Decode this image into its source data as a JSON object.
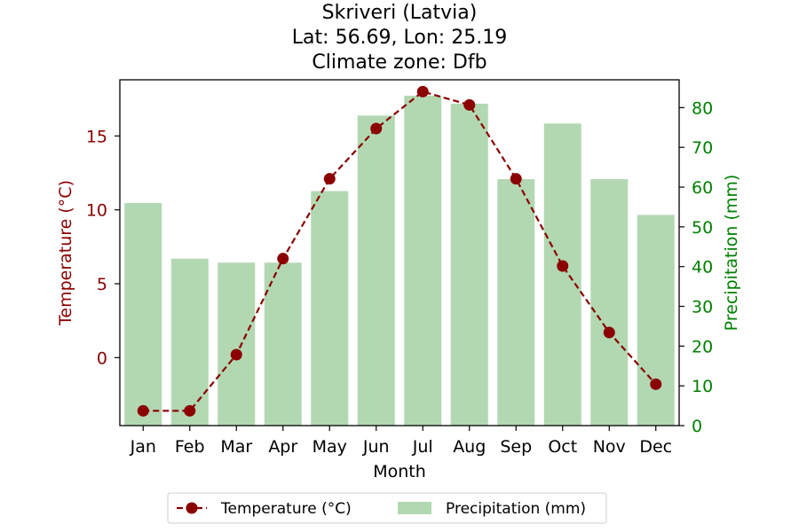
{
  "chart_data": {
    "type": "bar+line",
    "title_lines": [
      "Skriveri (Latvia)",
      "Lat: 56.69, Lon: 25.19",
      "Climate zone: Dfb"
    ],
    "xlabel": "Month",
    "ylabel_left": "Temperature (°C)",
    "ylabel_right": "Precipitation (mm)",
    "categories": [
      "Jan",
      "Feb",
      "Mar",
      "Apr",
      "May",
      "Jun",
      "Jul",
      "Aug",
      "Sep",
      "Oct",
      "Nov",
      "Dec"
    ],
    "temperature": {
      "name": "Temperature (°C)",
      "values": [
        -3.6,
        -3.6,
        0.2,
        6.7,
        12.1,
        15.5,
        18.0,
        17.1,
        12.1,
        6.2,
        1.7,
        -1.8
      ],
      "color": "#8b0000",
      "style": "dashed line with circle markers"
    },
    "precipitation": {
      "name": "Precipitation (mm)",
      "values": [
        56,
        42,
        41,
        41,
        59,
        78,
        83,
        81,
        62,
        76,
        62,
        53
      ],
      "color": "#b2d8b2"
    },
    "ylim_left": [
      -4.6,
      18.8
    ],
    "ylim_right": [
      0,
      87
    ],
    "yticks_left": [
      0,
      5,
      10,
      15
    ],
    "yticks_right": [
      0,
      10,
      20,
      30,
      40,
      50,
      60,
      70,
      80
    ],
    "left_axis_color": "#8b0000",
    "right_axis_color": "#008000",
    "grid": false,
    "legend_position": "below plot, centered"
  }
}
